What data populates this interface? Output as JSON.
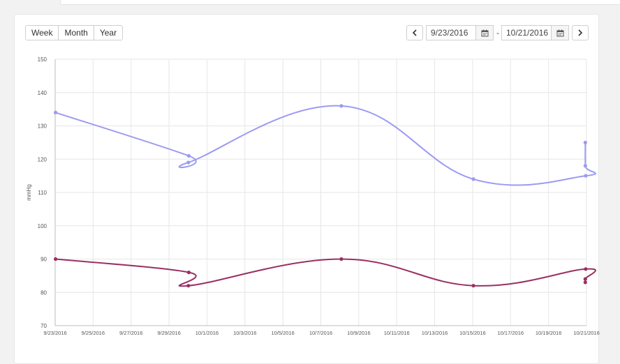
{
  "range_buttons": {
    "week": "Week",
    "month": "Month",
    "year": "Year"
  },
  "date_range": {
    "start": "9/23/2016",
    "end": "10/21/2016",
    "separator": "-"
  },
  "icons": {
    "prev": "chevron-left-icon",
    "next": "chevron-right-icon",
    "calendar": "calendar-icon"
  },
  "colors": {
    "series_a": "#9b9bf2",
    "series_b": "#9a2f62",
    "grid": "#e6e6e6",
    "axis_text": "#555555"
  },
  "chart_data": {
    "type": "line",
    "ylabel": "mmHg",
    "ylim": [
      70,
      150
    ],
    "yticks": [
      70,
      80,
      90,
      100,
      110,
      120,
      130,
      140,
      150
    ],
    "xlim": [
      "9/23/2016",
      "10/21/2016"
    ],
    "xticks": [
      "9/23/2016",
      "9/25/2016",
      "9/27/2016",
      "9/29/2016",
      "10/1/2016",
      "10/3/2016",
      "10/5/2016",
      "10/7/2016",
      "10/9/2016",
      "10/11/2016",
      "10/13/2016",
      "10/15/2016",
      "10/17/2016",
      "10/19/2016",
      "10/21/2016"
    ],
    "grid": true,
    "series": [
      {
        "points": [
          {
            "x": "9/23/2016 00:30",
            "y": 134
          },
          {
            "x": "9/30/2016 01:00",
            "y": 121
          },
          {
            "x": "9/30/2016 00:30",
            "y": 119
          },
          {
            "x": "10/8/2016 02:00",
            "y": 136
          },
          {
            "x": "10/15/2016 01:00",
            "y": 114
          },
          {
            "x": "10/20/2016 23:00",
            "y": 115
          },
          {
            "x": "10/20/2016 22:30",
            "y": 118
          },
          {
            "x": "10/20/2016 22:30",
            "y": 125
          }
        ]
      },
      {
        "points": [
          {
            "x": "9/23/2016 00:30",
            "y": 90
          },
          {
            "x": "9/30/2016 01:00",
            "y": 86
          },
          {
            "x": "9/30/2016 00:30",
            "y": 82
          },
          {
            "x": "10/8/2016 02:00",
            "y": 90
          },
          {
            "x": "10/15/2016 01:00",
            "y": 82
          },
          {
            "x": "10/20/2016 23:00",
            "y": 87
          },
          {
            "x": "10/20/2016 22:30",
            "y": 84
          },
          {
            "x": "10/20/2016 22:30",
            "y": 83
          }
        ]
      }
    ]
  }
}
